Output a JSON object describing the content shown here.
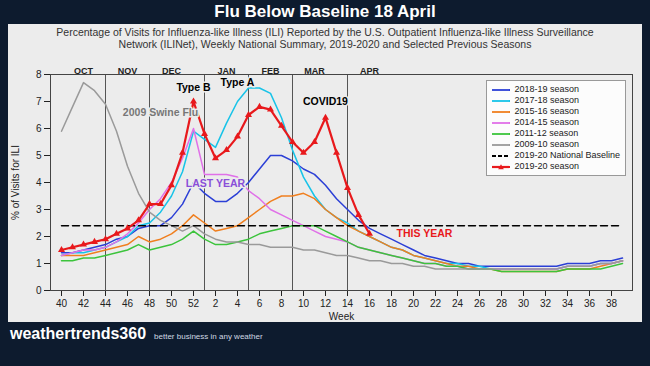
{
  "chart_data": {
    "type": "line",
    "title": "Flu Below Baseline 18 April",
    "subtitle": "Percentage of Visits for Influenza-like Illness (ILI) Reported by the U.S. Outpatient Influenza-like Illness Surveillance Network (ILINet), Weekly National Summary, 2019-2020 and Selected Previous Seasons",
    "x_label": "Week",
    "y_label": "% of Visits for ILI",
    "categories": [
      40,
      41,
      42,
      43,
      44,
      45,
      46,
      47,
      48,
      49,
      50,
      51,
      52,
      1,
      2,
      3,
      4,
      5,
      6,
      7,
      8,
      9,
      10,
      11,
      12,
      13,
      14,
      15,
      16,
      17,
      18,
      19,
      20,
      21,
      22,
      23,
      24,
      25,
      26,
      27,
      28,
      29,
      30,
      31,
      32,
      33,
      34,
      35,
      36,
      37,
      38,
      39
    ],
    "xticks": [
      40,
      42,
      44,
      46,
      48,
      50,
      52,
      2,
      4,
      6,
      8,
      10,
      12,
      14,
      16,
      18,
      20,
      22,
      24,
      26,
      28,
      30,
      32,
      34,
      36,
      38
    ],
    "ylim": [
      0,
      8
    ],
    "yticks": [
      0,
      1,
      2,
      3,
      4,
      5,
      6,
      7,
      8
    ],
    "grid": false,
    "legend": "upper right",
    "months": [
      {
        "label": "OCT",
        "x": 42
      },
      {
        "label": "NOV",
        "x": 46
      },
      {
        "label": "DEC",
        "x": 50
      },
      {
        "label": "JAN",
        "x": 3
      },
      {
        "label": "FEB",
        "x": 7
      },
      {
        "label": "MAR",
        "x": 11
      },
      {
        "label": "APR",
        "x": 16
      }
    ],
    "month_separators": [
      44,
      48,
      1,
      5,
      9,
      14
    ],
    "annotations": [
      {
        "text": "Type B",
        "x": 52,
        "y": 7.5,
        "color": "#000000"
      },
      {
        "text": "Type A",
        "x": 4,
        "y": 7.7,
        "color": "#000000"
      },
      {
        "text": "COVID19",
        "x": 12,
        "y": 7.0,
        "color": "#000000"
      },
      {
        "text": "LAST YEAR",
        "x": 2,
        "y": 3.95,
        "color": "#8a4fd8"
      },
      {
        "text": "THIS YEAR",
        "x": 21,
        "y": 2.1,
        "color": "#e8191c"
      },
      {
        "text": "2009 Swine Flu",
        "x": 49,
        "y": 6.6,
        "color": "#777777"
      }
    ],
    "series": [
      {
        "name": "2018-19 season",
        "color": "#2b3fd6",
        "values": [
          1.4,
          1.4,
          1.5,
          1.6,
          1.7,
          1.9,
          2.0,
          2.3,
          2.4,
          2.4,
          2.7,
          3.2,
          4.0,
          3.6,
          3.3,
          3.3,
          3.6,
          4.0,
          4.5,
          5.0,
          5.0,
          4.8,
          4.5,
          4.3,
          3.9,
          3.4,
          3.0,
          2.6,
          2.3,
          2.1,
          1.9,
          1.7,
          1.5,
          1.3,
          1.2,
          1.1,
          1.0,
          1.0,
          0.9,
          0.9,
          0.9,
          0.9,
          0.9,
          0.9,
          0.9,
          0.9,
          1.0,
          1.0,
          1.0,
          1.1,
          1.1,
          1.2
        ]
      },
      {
        "name": "2017-18 season",
        "color": "#17c3e8",
        "values": [
          1.3,
          1.4,
          1.4,
          1.5,
          1.6,
          1.8,
          2.0,
          2.4,
          2.5,
          2.9,
          3.5,
          4.4,
          5.9,
          5.6,
          5.3,
          6.2,
          7.0,
          7.5,
          7.5,
          7.3,
          6.4,
          5.2,
          4.2,
          3.5,
          3.0,
          2.7,
          2.5,
          2.2,
          2.0,
          1.8,
          1.6,
          1.5,
          1.3,
          1.2,
          1.1,
          1.0,
          1.0,
          0.9,
          0.9,
          0.8,
          0.8,
          0.8,
          0.8,
          0.8,
          0.8,
          0.8,
          0.9,
          0.9,
          0.9,
          1.0,
          1.0,
          1.1
        ]
      },
      {
        "name": "2015-16 season",
        "color": "#f07f1f",
        "values": [
          1.3,
          1.3,
          1.3,
          1.4,
          1.5,
          1.6,
          1.7,
          2.0,
          1.8,
          1.9,
          2.1,
          2.4,
          2.8,
          2.5,
          2.2,
          2.3,
          2.4,
          2.7,
          3.0,
          3.3,
          3.5,
          3.5,
          3.6,
          3.4,
          3.0,
          2.7,
          2.4,
          2.2,
          2.0,
          1.8,
          1.6,
          1.5,
          1.3,
          1.2,
          1.1,
          1.0,
          0.9,
          0.9,
          0.8,
          0.8,
          0.7,
          0.7,
          0.7,
          0.7,
          0.7,
          0.7,
          0.8,
          0.8,
          0.8,
          0.9,
          1.0,
          1.1
        ]
      },
      {
        "name": "2014-15 season",
        "color": "#e070e8",
        "values": [
          1.3,
          1.4,
          1.5,
          1.5,
          1.6,
          1.8,
          2.1,
          2.5,
          3.0,
          3.4,
          4.0,
          4.9,
          6.0,
          4.3,
          4.3,
          4.3,
          4.2,
          3.7,
          3.4,
          3.0,
          2.8,
          2.6,
          2.4,
          2.2,
          2.0,
          1.9,
          1.8,
          1.6,
          1.5,
          1.4,
          1.3,
          1.2,
          1.1,
          1.0,
          1.0,
          0.9,
          0.9,
          0.8,
          0.8,
          0.8,
          0.8,
          0.8,
          0.8,
          0.8,
          0.8,
          0.8,
          0.9,
          0.9,
          0.9,
          1.0,
          1.0,
          1.1
        ]
      },
      {
        "name": "2011-12 season",
        "color": "#3cc43c",
        "values": [
          1.1,
          1.1,
          1.2,
          1.2,
          1.3,
          1.4,
          1.5,
          1.7,
          1.5,
          1.6,
          1.7,
          1.9,
          2.2,
          1.9,
          1.7,
          1.7,
          1.8,
          1.9,
          2.1,
          2.2,
          2.3,
          2.4,
          2.4,
          2.4,
          2.2,
          2.0,
          1.8,
          1.6,
          1.5,
          1.4,
          1.3,
          1.2,
          1.1,
          1.0,
          1.0,
          0.9,
          0.9,
          0.8,
          0.8,
          0.8,
          0.7,
          0.7,
          0.7,
          0.7,
          0.7,
          0.7,
          0.8,
          0.8,
          0.8,
          0.8,
          0.9,
          1.0
        ]
      },
      {
        "name": "2009-10 season",
        "color": "#9a9a9a",
        "values": [
          5.9,
          6.8,
          7.7,
          7.4,
          6.9,
          5.9,
          4.6,
          3.6,
          2.9,
          2.6,
          2.4,
          2.2,
          2.4,
          2.1,
          1.9,
          1.8,
          1.8,
          1.7,
          1.7,
          1.6,
          1.6,
          1.6,
          1.5,
          1.5,
          1.4,
          1.3,
          1.3,
          1.2,
          1.1,
          1.1,
          1.0,
          1.0,
          0.9,
          0.9,
          0.8,
          0.8,
          0.8,
          0.8,
          0.8,
          0.8,
          0.8,
          0.8,
          0.8,
          0.8,
          0.8,
          0.8,
          0.9,
          0.9,
          0.9,
          1.0,
          1.0,
          1.1
        ]
      },
      {
        "name": "2019-20 National Baseline",
        "color": "#000000",
        "line_style": "dashed",
        "values": [
          2.4,
          2.4,
          2.4,
          2.4,
          2.4,
          2.4,
          2.4,
          2.4,
          2.4,
          2.4,
          2.4,
          2.4,
          2.4,
          2.4,
          2.4,
          2.4,
          2.4,
          2.4,
          2.4,
          2.4,
          2.4,
          2.4,
          2.4,
          2.4,
          2.4,
          2.4,
          2.4,
          2.4,
          2.4,
          2.4,
          2.4,
          2.4,
          2.4,
          2.4,
          2.4,
          2.4,
          2.4,
          2.4,
          2.4,
          2.4,
          2.4,
          2.4,
          2.4,
          2.4,
          2.4,
          2.4,
          2.4,
          2.4,
          2.4,
          2.4,
          2.4,
          2.4
        ]
      },
      {
        "name": "2019-20 season",
        "color": "#e8191c",
        "marker": "triangle",
        "values": [
          1.5,
          1.6,
          1.7,
          1.8,
          1.9,
          2.1,
          2.3,
          2.6,
          3.2,
          3.2,
          3.9,
          5.1,
          7.0,
          5.8,
          4.9,
          5.2,
          5.7,
          6.5,
          6.8,
          6.7,
          6.1,
          5.5,
          5.1,
          5.5,
          6.4,
          5.1,
          3.8,
          2.8,
          2.1,
          null,
          null,
          null,
          null,
          null,
          null,
          null,
          null,
          null,
          null,
          null,
          null,
          null,
          null,
          null,
          null,
          null,
          null,
          null,
          null,
          null,
          null,
          null
        ]
      }
    ],
    "source_logo": "weathertrends360",
    "source_tagline": "better business in any weather"
  }
}
